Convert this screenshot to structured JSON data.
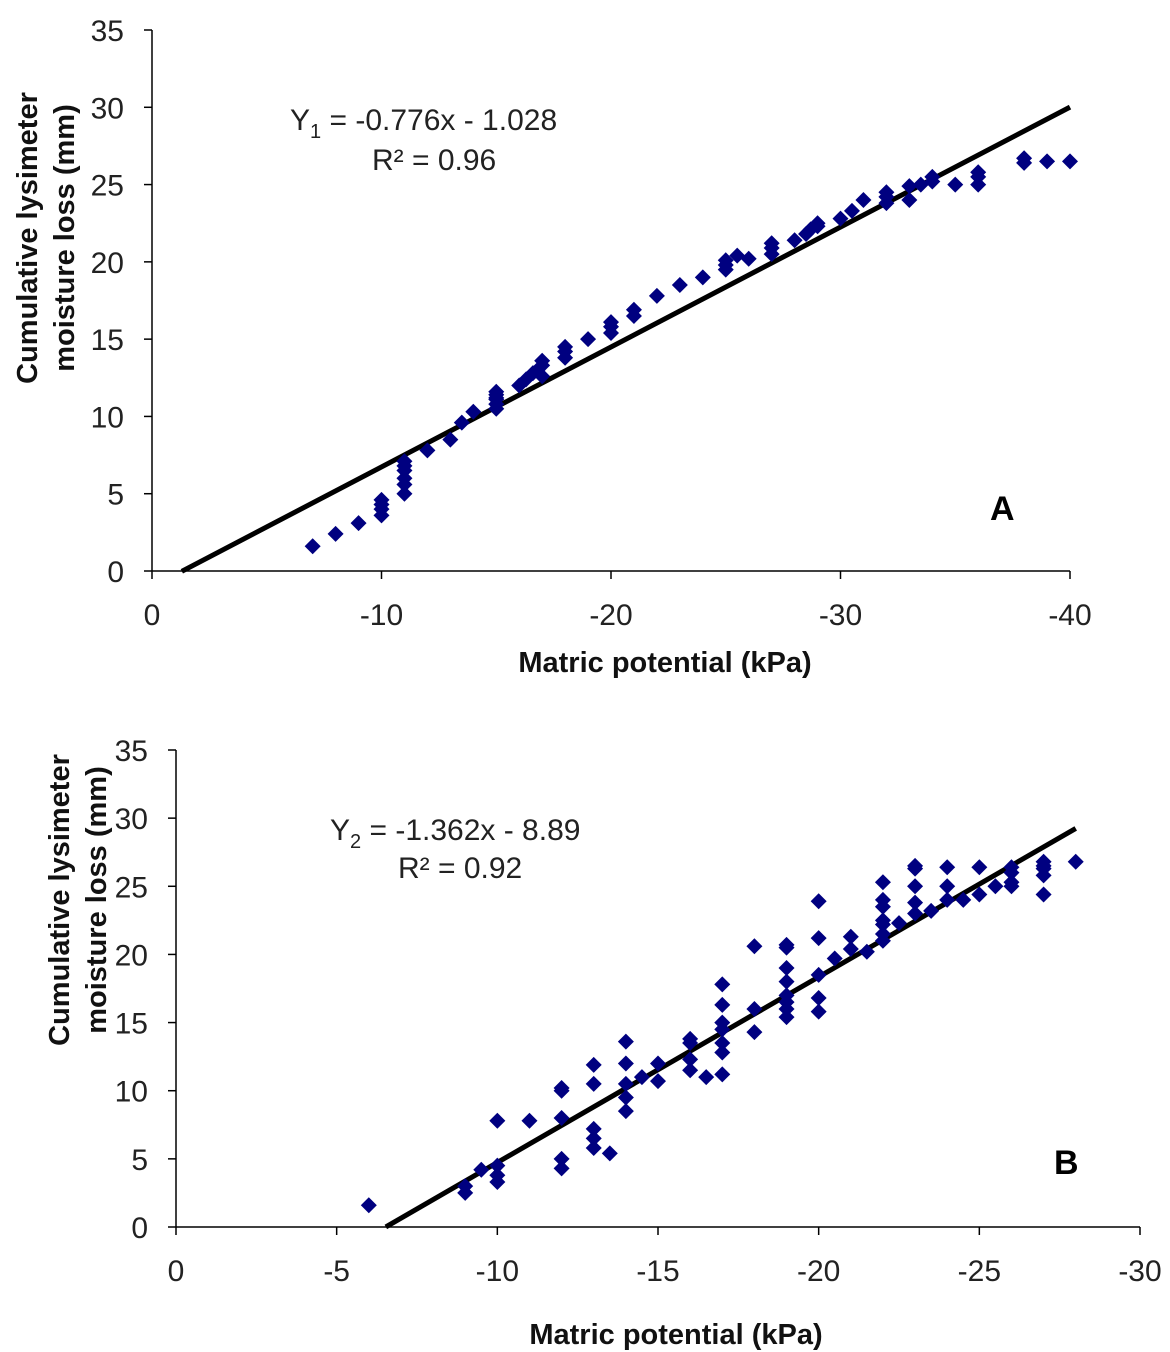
{
  "colors": {
    "marker": "#000080",
    "trend": "#000000"
  },
  "chart_data": [
    {
      "type": "scatter",
      "panel_label": "A",
      "ylabel_lines": [
        "Cumulative lysimeter",
        "moisture loss  (mm)"
      ],
      "xlabel": "Matric potential (kPa)",
      "xlim": [
        0,
        -40
      ],
      "ylim": [
        0,
        35
      ],
      "xticks": [
        0,
        -10,
        -20,
        -30,
        -40
      ],
      "yticks": [
        0,
        5,
        10,
        15,
        20,
        25,
        30,
        35
      ],
      "xtick_labels": [
        "0",
        "-10",
        "-20",
        "-30",
        "-40"
      ],
      "ytick_labels": [
        "0",
        "5",
        "10",
        "15",
        "20",
        "25",
        "30",
        "35"
      ],
      "equation_prefix": "Y",
      "equation_sub": "1",
      "equation_rest": " = -0.776x - 1.028",
      "r2": "R² = 0.96",
      "trendline": {
        "slope": -0.776,
        "intercept": -1.028,
        "x_from": -1.3,
        "x_to": -40
      },
      "x": [
        -7,
        -8,
        -9,
        -10,
        -10,
        -10,
        -10,
        -11,
        -11,
        -11,
        -11,
        -11,
        -11,
        -12,
        -13,
        -13.5,
        -14,
        -15,
        -15,
        -15,
        -15,
        -15,
        -15,
        -16,
        -16.3,
        -16.6,
        -16.8,
        -17,
        -17,
        -17,
        -18,
        -18,
        -18,
        -19,
        -20,
        -20,
        -20,
        -21,
        -21,
        -22,
        -23,
        -24,
        -25,
        -25,
        -25,
        -25.5,
        -26,
        -27,
        -27,
        -27,
        -28,
        -28.5,
        -28.7,
        -29,
        -29,
        -30,
        -30.5,
        -31,
        -32,
        -32,
        -32,
        -33,
        -33,
        -33.5,
        -34,
        -34,
        -35,
        -36,
        -36,
        -36,
        -38,
        -38,
        -39,
        -40
      ],
      "y": [
        1.6,
        2.4,
        3.1,
        3.6,
        4,
        4.3,
        4.6,
        5,
        5.6,
        6,
        6.5,
        6.8,
        7.1,
        7.8,
        8.5,
        9.6,
        10.3,
        10.5,
        10.8,
        11.1,
        11.4,
        11.6,
        11.2,
        12,
        12.4,
        12.8,
        13,
        13.3,
        13.6,
        12.6,
        13.8,
        14.2,
        14.5,
        15,
        15.4,
        15.8,
        16.1,
        16.5,
        16.9,
        17.8,
        18.5,
        19,
        19.5,
        19.8,
        20.1,
        20.4,
        20.2,
        20.5,
        20.9,
        21.2,
        21.4,
        21.8,
        22.1,
        22.3,
        22.5,
        22.8,
        23.3,
        24,
        23.8,
        24.2,
        24.5,
        24,
        24.9,
        25,
        25.2,
        25.5,
        25,
        25,
        25.5,
        25.8,
        26.4,
        26.7,
        26.5,
        26.5
      ]
    },
    {
      "type": "scatter",
      "panel_label": "B",
      "ylabel_lines": [
        "Cumulative lysimeter",
        "moisture loss  (mm)"
      ],
      "xlabel": "Matric potential (kPa)",
      "xlim": [
        0,
        -30
      ],
      "ylim": [
        0,
        35
      ],
      "xticks": [
        0,
        -5,
        -10,
        -15,
        -20,
        -25,
        -30
      ],
      "yticks": [
        0,
        5,
        10,
        15,
        20,
        25,
        30,
        35
      ],
      "xtick_labels": [
        "0",
        "-5",
        "-10",
        "-15",
        "-20",
        "-25",
        "-30"
      ],
      "ytick_labels": [
        "0",
        "5",
        "10",
        "15",
        "20",
        "25",
        "30",
        "35"
      ],
      "equation_prefix": "Y",
      "equation_sub": "2",
      "equation_rest": " = -1.362x - 8.89",
      "r2": "R² = 0.92",
      "trendline": {
        "slope": -1.362,
        "intercept": -8.89,
        "x_from": -6.53,
        "x_to": -28
      },
      "x": [
        -6,
        -9,
        -9,
        -9.5,
        -10,
        -10,
        -10,
        -10,
        -11,
        -12,
        -12,
        -12,
        -12,
        -12,
        -13,
        -13,
        -13,
        -13,
        -13,
        -13.5,
        -14,
        -14,
        -14,
        -14,
        -14,
        -14.5,
        -15,
        -15,
        -16,
        -16,
        -16,
        -16,
        -16.5,
        -17,
        -17,
        -17,
        -17,
        -17,
        -17,
        -17,
        -18,
        -18,
        -18,
        -19,
        -19,
        -19,
        -19,
        -19,
        -19,
        -19,
        -19,
        -20,
        -20,
        -20,
        -20,
        -20,
        -20.5,
        -21,
        -21,
        -21.5,
        -22,
        -22,
        -22,
        -22,
        -22,
        -22,
        -22,
        -22.5,
        -23,
        -23,
        -23,
        -23,
        -23,
        -23.5,
        -24,
        -24,
        -24,
        -24.5,
        -25,
        -25,
        -25.5,
        -26,
        -26,
        -26,
        -26,
        -27,
        -27,
        -27,
        -27,
        -27,
        -28
      ],
      "y": [
        1.6,
        2.5,
        3.0,
        4.2,
        3.3,
        3.8,
        4.5,
        7.8,
        7.8,
        4.3,
        5.0,
        8.0,
        10.0,
        10.2,
        5.8,
        6.5,
        7.2,
        10.5,
        11.9,
        5.4,
        8.5,
        9.5,
        10.5,
        12.0,
        13.6,
        11.0,
        10.7,
        12.0,
        11.5,
        12.3,
        13.5,
        13.8,
        11.0,
        11.2,
        12.8,
        13.5,
        14.5,
        15.0,
        16.3,
        17.8,
        14.3,
        16.0,
        20.6,
        15.4,
        16.0,
        16.5,
        17.0,
        18.0,
        19.0,
        20.5,
        20.7,
        15.8,
        16.8,
        18.5,
        21.2,
        23.9,
        19.7,
        20.4,
        21.3,
        20.2,
        21.0,
        21.5,
        22.2,
        22.5,
        23.5,
        24.0,
        25.3,
        22.3,
        23.0,
        23.8,
        25.0,
        26.3,
        26.5,
        23.2,
        24.0,
        25.0,
        26.4,
        24.0,
        24.4,
        26.4,
        25.0,
        25.0,
        25.3,
        26.0,
        26.4,
        24.4,
        25.8,
        26.3,
        26.5,
        26.8,
        26.8
      ]
    }
  ]
}
